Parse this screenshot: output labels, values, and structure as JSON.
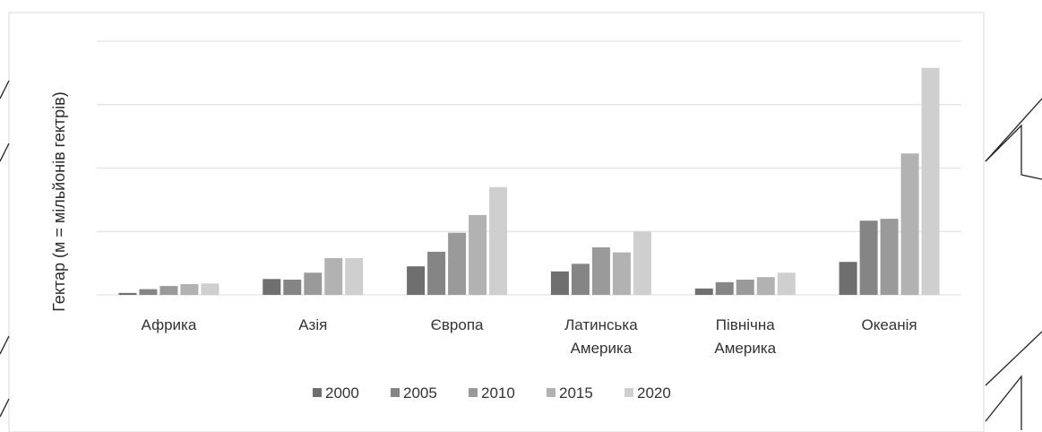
{
  "chart_data": {
    "type": "bar",
    "title": "",
    "xlabel": "",
    "ylabel": "Гектар (м = мільйонів гектрів)",
    "categories": [
      [
        "Африка"
      ],
      [
        "Азія"
      ],
      [
        "Європа"
      ],
      [
        "Латинська",
        "Америка"
      ],
      [
        "Північна",
        "Америка"
      ],
      [
        "Океанія"
      ]
    ],
    "ylim": [
      0,
      4
    ],
    "grid": true,
    "legend_position": "bottom",
    "series": [
      {
        "name": "2000",
        "color": "#6f6f6f",
        "values": [
          0.03,
          0.25,
          0.45,
          0.37,
          0.1,
          0.52
        ]
      },
      {
        "name": "2005",
        "color": "#858585",
        "values": [
          0.09,
          0.24,
          0.68,
          0.49,
          0.2,
          1.17
        ]
      },
      {
        "name": "2010",
        "color": "#9a9a9a",
        "values": [
          0.14,
          0.35,
          0.98,
          0.75,
          0.24,
          1.2
        ]
      },
      {
        "name": "2015",
        "color": "#b2b2b2",
        "values": [
          0.17,
          0.58,
          1.26,
          0.67,
          0.28,
          2.23
        ]
      },
      {
        "name": "2020",
        "color": "#cfcfcf",
        "values": [
          0.18,
          0.58,
          1.7,
          1.0,
          0.35,
          3.58
        ]
      }
    ]
  }
}
